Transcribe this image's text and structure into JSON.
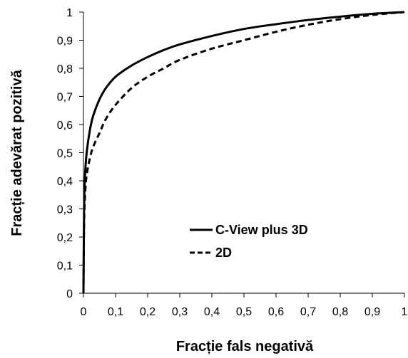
{
  "chart_data": {
    "type": "line",
    "title": "",
    "xlabel": "Fracție fals negativă",
    "ylabel": "Fracție adevărat pozitivă",
    "xlim": [
      0,
      1
    ],
    "ylim": [
      0,
      1
    ],
    "x_ticks": [
      "0",
      "0,1",
      "0,2",
      "0,3",
      "0,4",
      "0,5",
      "0,6",
      "0,7",
      "0,8",
      "0,9",
      "1"
    ],
    "y_ticks": [
      "0",
      "0,1",
      "0,2",
      "0,3",
      "0,4",
      "0,5",
      "0,6",
      "0,7",
      "0,8",
      "0,9",
      "1"
    ],
    "grid": false,
    "legend_position": "center-right",
    "series": [
      {
        "name": "C-View plus 3D",
        "style": "solid",
        "color": "#000000",
        "x": [
          0,
          0.002,
          0.005,
          0.01,
          0.02,
          0.03,
          0.05,
          0.07,
          0.1,
          0.15,
          0.2,
          0.25,
          0.3,
          0.4,
          0.5,
          0.6,
          0.7,
          0.8,
          0.9,
          1.0
        ],
        "y": [
          0,
          0.3,
          0.42,
          0.5,
          0.58,
          0.63,
          0.69,
          0.73,
          0.77,
          0.81,
          0.84,
          0.865,
          0.885,
          0.915,
          0.94,
          0.957,
          0.972,
          0.984,
          0.994,
          1.0
        ]
      },
      {
        "name": "2D",
        "style": "dashed",
        "color": "#000000",
        "x": [
          0,
          0.002,
          0.005,
          0.01,
          0.02,
          0.03,
          0.05,
          0.07,
          0.1,
          0.15,
          0.2,
          0.25,
          0.3,
          0.4,
          0.5,
          0.6,
          0.7,
          0.8,
          0.9,
          1.0
        ],
        "y": [
          0,
          0.25,
          0.35,
          0.42,
          0.48,
          0.52,
          0.57,
          0.62,
          0.67,
          0.73,
          0.77,
          0.8,
          0.83,
          0.87,
          0.9,
          0.93,
          0.955,
          0.975,
          0.99,
          1.0
        ]
      }
    ]
  }
}
